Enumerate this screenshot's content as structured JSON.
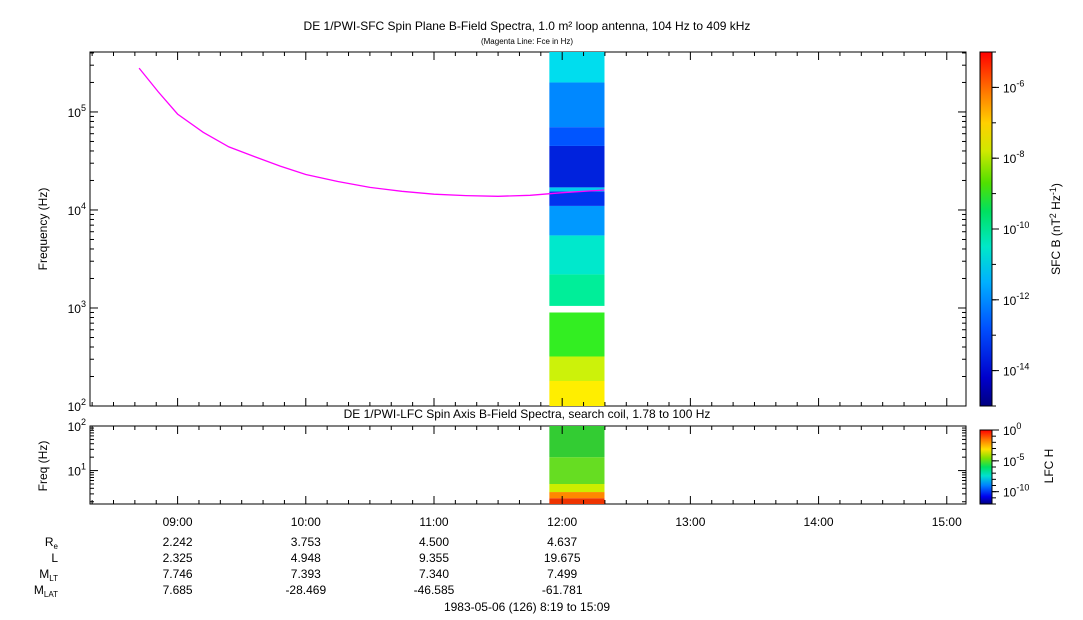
{
  "figure": {
    "title": "DE 1/PWI-SFC  Spin Plane B-Field Spectra, 1.0 m² loop antenna, 104 Hz to 409 kHz",
    "subtitle": "(Magenta Line: Fce in Hz)",
    "panel2_title": "DE 1/PWI-LFC  Spin Axis B-Field Spectra, search coil, 1.78 to 100 Hz",
    "footer": "1983-05-06 (126) 8:19 to 15:09"
  },
  "chart_data": [
    {
      "type": "heatmap",
      "name": "SFC",
      "ylabel": "Frequency (Hz)",
      "yscale": "log",
      "ylim": [
        100,
        409000
      ],
      "xlim_hours": [
        8.3167,
        15.15
      ],
      "x_tick_labels": [
        "09:00",
        "10:00",
        "11:00",
        "12:00",
        "13:00",
        "14:00",
        "15:00"
      ],
      "x_tick_hours": [
        9,
        10,
        11,
        12,
        13,
        14,
        15
      ],
      "y_tick_labels": [
        {
          "base": "10",
          "exp": "2",
          "value": 100
        },
        {
          "base": "10",
          "exp": "3",
          "value": 1000
        },
        {
          "base": "10",
          "exp": "4",
          "value": 10000
        },
        {
          "base": "10",
          "exp": "5",
          "value": 100000
        }
      ],
      "colorbar": {
        "label": "SFC B (nT",
        "label_sup1": "2",
        "label_mid": " Hz",
        "label_sup2": "-1",
        "label_end": ")",
        "scale": "log",
        "range": [
          1e-15,
          1e-05
        ],
        "ticks": [
          {
            "base": "10",
            "exp": "-6",
            "value": 1e-06
          },
          {
            "base": "10",
            "exp": "-8",
            "value": 1e-08
          },
          {
            "base": "10",
            "exp": "-10",
            "value": 1e-10
          },
          {
            "base": "10",
            "exp": "-12",
            "value": 1e-12
          },
          {
            "base": "10",
            "exp": "-14",
            "value": 1e-14
          }
        ]
      },
      "data_interval_hours": [
        11.9,
        12.33
      ],
      "spectrum_bands": [
        {
          "f_low": 100,
          "f_high": 180,
          "color": "#ffee00"
        },
        {
          "f_low": 180,
          "f_high": 320,
          "color": "#ccf20a"
        },
        {
          "f_low": 320,
          "f_high": 900,
          "color": "#33ee22"
        },
        {
          "f_low": 900,
          "f_high": 1050,
          "color": "#ffffff"
        },
        {
          "f_low": 1050,
          "f_high": 2200,
          "color": "#00ee99"
        },
        {
          "f_low": 2200,
          "f_high": 5500,
          "color": "#00e8cc"
        },
        {
          "f_low": 5500,
          "f_high": 11000,
          "color": "#0099ff"
        },
        {
          "f_low": 11000,
          "f_high": 15500,
          "color": "#0033ee"
        },
        {
          "f_low": 15500,
          "f_high": 17000,
          "color": "#00ccee"
        },
        {
          "f_low": 17000,
          "f_high": 45000,
          "color": "#0022dd"
        },
        {
          "f_low": 45000,
          "f_high": 70000,
          "color": "#0055ff"
        },
        {
          "f_low": 70000,
          "f_high": 200000,
          "color": "#0088ff"
        },
        {
          "f_low": 200000,
          "f_high": 409000,
          "color": "#00ddee"
        }
      ],
      "fce_line": {
        "name": "Fce",
        "color": "#ff00ff",
        "points": [
          [
            8.7,
            280000
          ],
          [
            8.85,
            160000
          ],
          [
            9.0,
            95000
          ],
          [
            9.2,
            62000
          ],
          [
            9.4,
            44000
          ],
          [
            9.6,
            35000
          ],
          [
            9.8,
            28000
          ],
          [
            10.0,
            23000
          ],
          [
            10.25,
            19500
          ],
          [
            10.5,
            17000
          ],
          [
            10.75,
            15500
          ],
          [
            11.0,
            14500
          ],
          [
            11.25,
            14000
          ],
          [
            11.5,
            13800
          ],
          [
            11.75,
            14100
          ],
          [
            12.0,
            15000
          ],
          [
            12.33,
            16000
          ]
        ]
      }
    },
    {
      "type": "heatmap",
      "name": "LFC",
      "ylabel": "Freq (Hz)",
      "yscale": "log",
      "ylim": [
        1.78,
        100
      ],
      "y_tick_labels": [
        {
          "base": "10",
          "exp": "1",
          "value": 10
        },
        {
          "base": "10",
          "exp": "2",
          "value": 100
        }
      ],
      "colorbar": {
        "label": "LFC H",
        "scale": "log",
        "range": [
          1e-12,
          1
        ],
        "ticks": [
          {
            "base": "10",
            "exp": "0",
            "value": 1
          },
          {
            "base": "10",
            "exp": "-5",
            "value": 1e-05
          },
          {
            "base": "10",
            "exp": "-10",
            "value": 1e-10
          }
        ]
      },
      "data_interval_hours": [
        11.9,
        12.33
      ],
      "spectrum_bands": [
        {
          "f_low": 1.78,
          "f_high": 2.4,
          "color": "#ee3300"
        },
        {
          "f_low": 2.4,
          "f_high": 3.3,
          "color": "#ff8800"
        },
        {
          "f_low": 3.3,
          "f_high": 5.0,
          "color": "#ccee00"
        },
        {
          "f_low": 5.0,
          "f_high": 20,
          "color": "#66dd22"
        },
        {
          "f_low": 20,
          "f_high": 100,
          "color": "#33cc33"
        }
      ]
    }
  ],
  "ephemeris": {
    "rows": [
      {
        "label": "R",
        "sub": "e",
        "values": [
          "2.242",
          "3.753",
          "4.500",
          "4.637"
        ]
      },
      {
        "label": "L",
        "sub": "",
        "values": [
          "2.325",
          "4.948",
          "9.355",
          "19.675"
        ]
      },
      {
        "label": "M",
        "sub": "LT",
        "values": [
          "7.746",
          "7.393",
          "7.340",
          "7.499"
        ]
      },
      {
        "label": "M",
        "sub": "LAT",
        "values": [
          "7.685",
          "-28.469",
          "-46.585",
          "-61.781"
        ]
      }
    ]
  }
}
